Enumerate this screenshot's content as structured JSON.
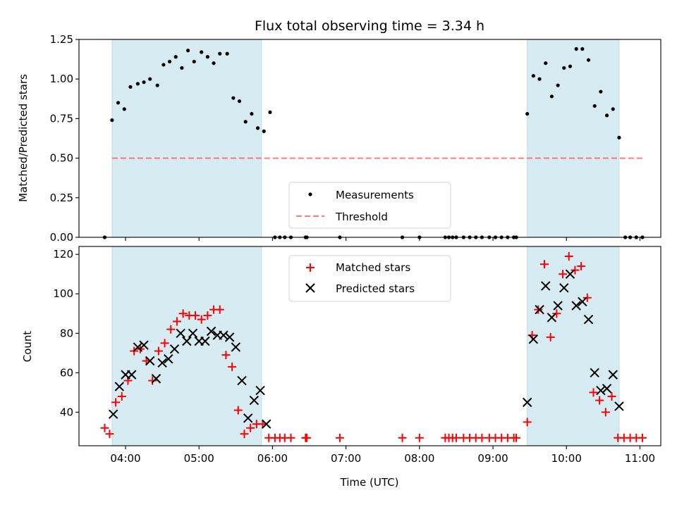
{
  "figure": {
    "title": "Flux total observing time = 3.34 h"
  },
  "chart_data": [
    {
      "type": "scatter",
      "panel": "top",
      "title": "Flux total observing time = 3.34 h",
      "xlabel": "",
      "ylabel": "Matched/Predicted stars",
      "xlim": [
        "03:22",
        "11:17"
      ],
      "ylim": [
        0,
        1.25
      ],
      "yticks": [
        0.0,
        0.25,
        0.5,
        0.75,
        1.0,
        1.25
      ],
      "ytick_labels": [
        "0.00",
        "0.25",
        "0.50",
        "0.75",
        "1.00",
        "1.25"
      ],
      "legend_position": "lower center",
      "bands": [
        [
          "03:49",
          "05:51"
        ],
        [
          "09:28",
          "10:43"
        ]
      ],
      "threshold": {
        "name": "Threshold",
        "y": 0.5,
        "x_range": [
          "03:49",
          "11:03"
        ],
        "color": "#ff6b6b"
      },
      "series": [
        {
          "name": "Measurements",
          "color": "#000000",
          "marker": "dot",
          "points": [
            [
              "03:43",
              0.0
            ],
            [
              "03:49",
              0.74
            ],
            [
              "03:54",
              0.85
            ],
            [
              "03:59",
              0.81
            ],
            [
              "04:04",
              0.95
            ],
            [
              "04:10",
              0.97
            ],
            [
              "04:15",
              0.98
            ],
            [
              "04:20",
              1.0
            ],
            [
              "04:26",
              0.96
            ],
            [
              "04:31",
              1.09
            ],
            [
              "04:36",
              1.11
            ],
            [
              "04:41",
              1.14
            ],
            [
              "04:46",
              1.07
            ],
            [
              "04:51",
              1.18
            ],
            [
              "04:56",
              1.11
            ],
            [
              "05:02",
              1.17
            ],
            [
              "05:07",
              1.14
            ],
            [
              "05:12",
              1.1
            ],
            [
              "05:17",
              1.16
            ],
            [
              "05:23",
              1.16
            ],
            [
              "05:28",
              0.88
            ],
            [
              "05:33",
              0.86
            ],
            [
              "05:38",
              0.73
            ],
            [
              "05:43",
              0.78
            ],
            [
              "05:48",
              0.69
            ],
            [
              "05:53",
              0.67
            ],
            [
              "05:58",
              0.79
            ],
            [
              "06:02",
              0.0
            ],
            [
              "06:06",
              0.0
            ],
            [
              "06:10",
              0.0
            ],
            [
              "06:15",
              0.0
            ],
            [
              "06:27",
              0.0
            ],
            [
              "06:28",
              0.0
            ],
            [
              "06:55",
              0.0
            ],
            [
              "07:46",
              0.0
            ],
            [
              "08:00",
              0.0
            ],
            [
              "08:21",
              0.0
            ],
            [
              "08:24",
              0.0
            ],
            [
              "08:27",
              0.0
            ],
            [
              "08:30",
              0.0
            ],
            [
              "08:36",
              0.0
            ],
            [
              "08:41",
              0.0
            ],
            [
              "08:46",
              0.0
            ],
            [
              "08:51",
              0.0
            ],
            [
              "08:57",
              0.0
            ],
            [
              "09:02",
              0.0
            ],
            [
              "09:07",
              0.0
            ],
            [
              "09:12",
              0.0
            ],
            [
              "09:17",
              0.0
            ],
            [
              "09:19",
              0.0
            ],
            [
              "09:28",
              0.78
            ],
            [
              "09:33",
              1.02
            ],
            [
              "09:38",
              1.0
            ],
            [
              "09:43",
              1.1
            ],
            [
              "09:48",
              0.89
            ],
            [
              "09:53",
              0.96
            ],
            [
              "09:58",
              1.07
            ],
            [
              "10:03",
              1.08
            ],
            [
              "10:08",
              1.19
            ],
            [
              "10:13",
              1.19
            ],
            [
              "10:18",
              1.12
            ],
            [
              "10:23",
              0.83
            ],
            [
              "10:28",
              0.92
            ],
            [
              "10:33",
              0.77
            ],
            [
              "10:38",
              0.81
            ],
            [
              "10:43",
              0.63
            ],
            [
              "10:48",
              0.0
            ],
            [
              "10:52",
              0.0
            ],
            [
              "10:57",
              0.0
            ],
            [
              "11:02",
              0.0
            ]
          ]
        }
      ]
    },
    {
      "type": "scatter",
      "panel": "bottom",
      "title": "",
      "xlabel": "Time (UTC)",
      "ylabel": "Count",
      "xlim": [
        "03:22",
        "11:17"
      ],
      "ylim": [
        23,
        124
      ],
      "yticks": [
        40,
        60,
        80,
        100,
        120
      ],
      "xticks": [
        "04:00",
        "05:00",
        "06:00",
        "07:00",
        "08:00",
        "09:00",
        "10:00",
        "11:00"
      ],
      "legend_position": "upper center",
      "bands": [
        [
          "03:49",
          "05:51"
        ],
        [
          "09:28",
          "10:43"
        ]
      ],
      "series": [
        {
          "name": "Matched stars",
          "color": "#ff0000",
          "marker": "plus",
          "points": [
            [
              "03:43",
              32
            ],
            [
              "03:47",
              29
            ],
            [
              "03:52",
              45
            ],
            [
              "03:57",
              48
            ],
            [
              "04:02",
              56
            ],
            [
              "04:07",
              71
            ],
            [
              "04:12",
              72
            ],
            [
              "04:17",
              66
            ],
            [
              "04:22",
              56
            ],
            [
              "04:27",
              71
            ],
            [
              "04:32",
              75
            ],
            [
              "04:37",
              82
            ],
            [
              "04:42",
              86
            ],
            [
              "04:47",
              90
            ],
            [
              "04:52",
              89
            ],
            [
              "04:57",
              89
            ],
            [
              "05:02",
              87
            ],
            [
              "05:07",
              89
            ],
            [
              "05:12",
              92
            ],
            [
              "05:17",
              92
            ],
            [
              "05:22",
              69
            ],
            [
              "05:27",
              63
            ],
            [
              "05:32",
              41
            ],
            [
              "05:37",
              29
            ],
            [
              "05:42",
              32
            ],
            [
              "05:47",
              34
            ],
            [
              "05:52",
              34
            ],
            [
              "05:57",
              27
            ],
            [
              "06:02",
              27
            ],
            [
              "06:06",
              27
            ],
            [
              "06:10",
              27
            ],
            [
              "06:15",
              27
            ],
            [
              "06:27",
              27
            ],
            [
              "06:28",
              27
            ],
            [
              "06:55",
              27
            ],
            [
              "07:46",
              27
            ],
            [
              "08:00",
              27
            ],
            [
              "08:21",
              27
            ],
            [
              "08:24",
              27
            ],
            [
              "08:27",
              27
            ],
            [
              "08:30",
              27
            ],
            [
              "08:36",
              27
            ],
            [
              "08:41",
              27
            ],
            [
              "08:46",
              27
            ],
            [
              "08:51",
              27
            ],
            [
              "08:57",
              27
            ],
            [
              "09:02",
              27
            ],
            [
              "09:07",
              27
            ],
            [
              "09:12",
              27
            ],
            [
              "09:17",
              27
            ],
            [
              "09:19",
              27
            ],
            [
              "09:28",
              35
            ],
            [
              "09:32",
              79
            ],
            [
              "09:37",
              92
            ],
            [
              "09:42",
              115
            ],
            [
              "09:47",
              78
            ],
            [
              "09:52",
              90
            ],
            [
              "09:57",
              110
            ],
            [
              "10:02",
              119
            ],
            [
              "10:07",
              112
            ],
            [
              "10:12",
              114
            ],
            [
              "10:17",
              98
            ],
            [
              "10:22",
              50
            ],
            [
              "10:27",
              46
            ],
            [
              "10:32",
              40
            ],
            [
              "10:37",
              48
            ],
            [
              "10:42",
              27
            ],
            [
              "10:47",
              27
            ],
            [
              "10:52",
              27
            ],
            [
              "10:57",
              27
            ],
            [
              "11:02",
              27
            ]
          ]
        },
        {
          "name": "Predicted stars",
          "color": "#000000",
          "marker": "x",
          "points": [
            [
              "03:50",
              39
            ],
            [
              "03:55",
              53
            ],
            [
              "04:00",
              59
            ],
            [
              "04:05",
              59
            ],
            [
              "04:10",
              73
            ],
            [
              "04:15",
              74
            ],
            [
              "04:20",
              66
            ],
            [
              "04:25",
              57
            ],
            [
              "04:30",
              65
            ],
            [
              "04:35",
              67
            ],
            [
              "04:40",
              72
            ],
            [
              "04:45",
              80
            ],
            [
              "04:50",
              76
            ],
            [
              "04:55",
              80
            ],
            [
              "05:00",
              76
            ],
            [
              "05:05",
              76
            ],
            [
              "05:10",
              81
            ],
            [
              "05:15",
              79
            ],
            [
              "05:20",
              79
            ],
            [
              "05:25",
              78
            ],
            [
              "05:30",
              73
            ],
            [
              "05:35",
              56
            ],
            [
              "05:40",
              37
            ],
            [
              "05:45",
              46
            ],
            [
              "05:50",
              51
            ],
            [
              "05:55",
              34
            ],
            [
              "09:28",
              45
            ],
            [
              "09:33",
              77
            ],
            [
              "09:38",
              92
            ],
            [
              "09:43",
              104
            ],
            [
              "09:48",
              88
            ],
            [
              "09:53",
              94
            ],
            [
              "09:58",
              103
            ],
            [
              "10:03",
              110
            ],
            [
              "10:08",
              94
            ],
            [
              "10:13",
              96
            ],
            [
              "10:18",
              87
            ],
            [
              "10:23",
              60
            ],
            [
              "10:28",
              51
            ],
            [
              "10:33",
              52
            ],
            [
              "10:38",
              59
            ],
            [
              "10:43",
              43
            ]
          ]
        }
      ]
    }
  ]
}
